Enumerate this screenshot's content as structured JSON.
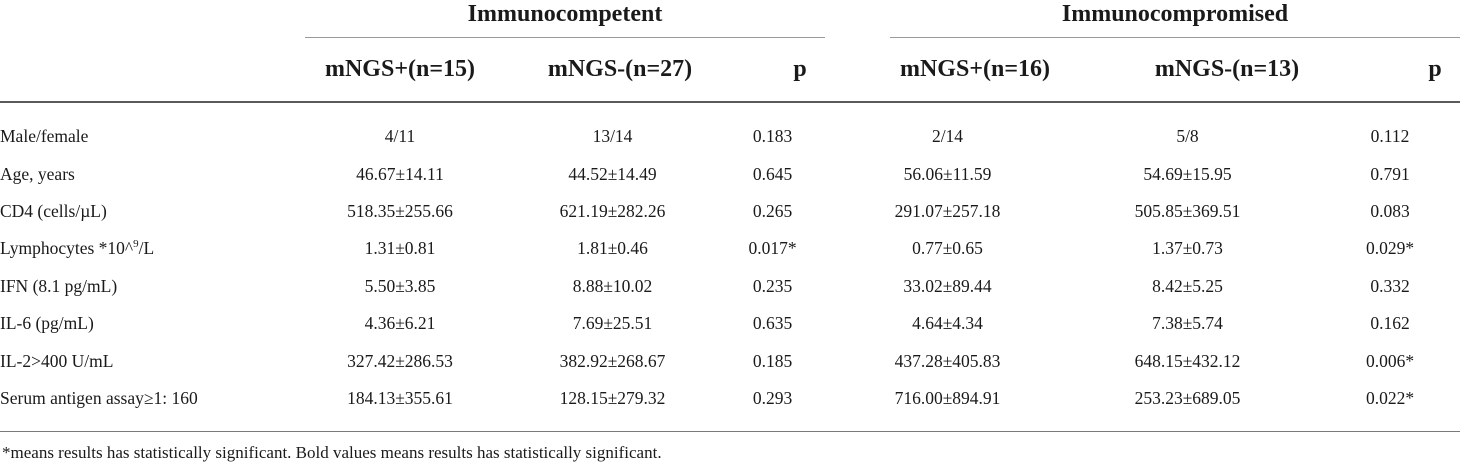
{
  "groups": {
    "left": "Immunocompetent",
    "right": "Immunocompromised"
  },
  "columns": {
    "ic_pos": "mNGS+(n=15)",
    "ic_neg": "mNGS-(n=27)",
    "ic_p": "p",
    "icp_pos": "mNGS+(n=16)",
    "icp_neg": "mNGS-(n=13)",
    "icp_p": "p"
  },
  "rows": [
    {
      "label": "Male/female",
      "c1": "4/11",
      "c2": "13/14",
      "p1": "0.183",
      "c3": "2/14",
      "c4": "5/8",
      "p2": "0.112"
    },
    {
      "label": "Age, years",
      "c1": "46.67±14.11",
      "c2": "44.52±14.49",
      "p1": "0.645",
      "c3": "56.06±11.59",
      "c4": "54.69±15.95",
      "p2": "0.791"
    },
    {
      "label": "CD4 (cells/µL)",
      "c1": "518.35±255.66",
      "c2": "621.19±282.26",
      "p1": "0.265",
      "c3": "291.07±257.18",
      "c4": "505.85±369.51",
      "p2": "0.083"
    },
    {
      "label_pre": "Lymphocytes *10^",
      "label_sup": "9",
      "label_post": "/L",
      "c1": "1.31±0.81",
      "c2": "1.81±0.46",
      "p1": "0.017",
      "p1_star": "*",
      "c3": "0.77±0.65",
      "c4": "1.37±0.73",
      "p2": "0.029",
      "p2_star": "*"
    },
    {
      "label": "IFN (8.1 pg/mL)",
      "c1": "5.50±3.85",
      "c2": "8.88±10.02",
      "p1": "0.235",
      "c3": "33.02±89.44",
      "c4": "8.42±5.25",
      "p2": "0.332"
    },
    {
      "label": "IL-6 (pg/mL)",
      "c1": "4.36±6.21",
      "c2": "7.69±25.51",
      "p1": "0.635",
      "c3": "4.64±4.34",
      "c4": "7.38±5.74",
      "p2": "0.162"
    },
    {
      "label": "IL-2>400 U/mL",
      "c1": "327.42±286.53",
      "c2": "382.92±268.67",
      "p1": "0.185",
      "c3": "437.28±405.83",
      "c4": "648.15±432.12",
      "p2": "0.006",
      "p2_star": "*"
    },
    {
      "label": "Serum antigen assay≥1: 160",
      "c1": "184.13±355.61",
      "c2": "128.15±279.32",
      "p1": "0.293",
      "c3": "716.00±894.91",
      "c4": "253.23±689.05",
      "p2": "0.022",
      "p2_star": "*"
    }
  ],
  "footnote": "*means results has statistically significant. Bold values means results has statistically significant."
}
